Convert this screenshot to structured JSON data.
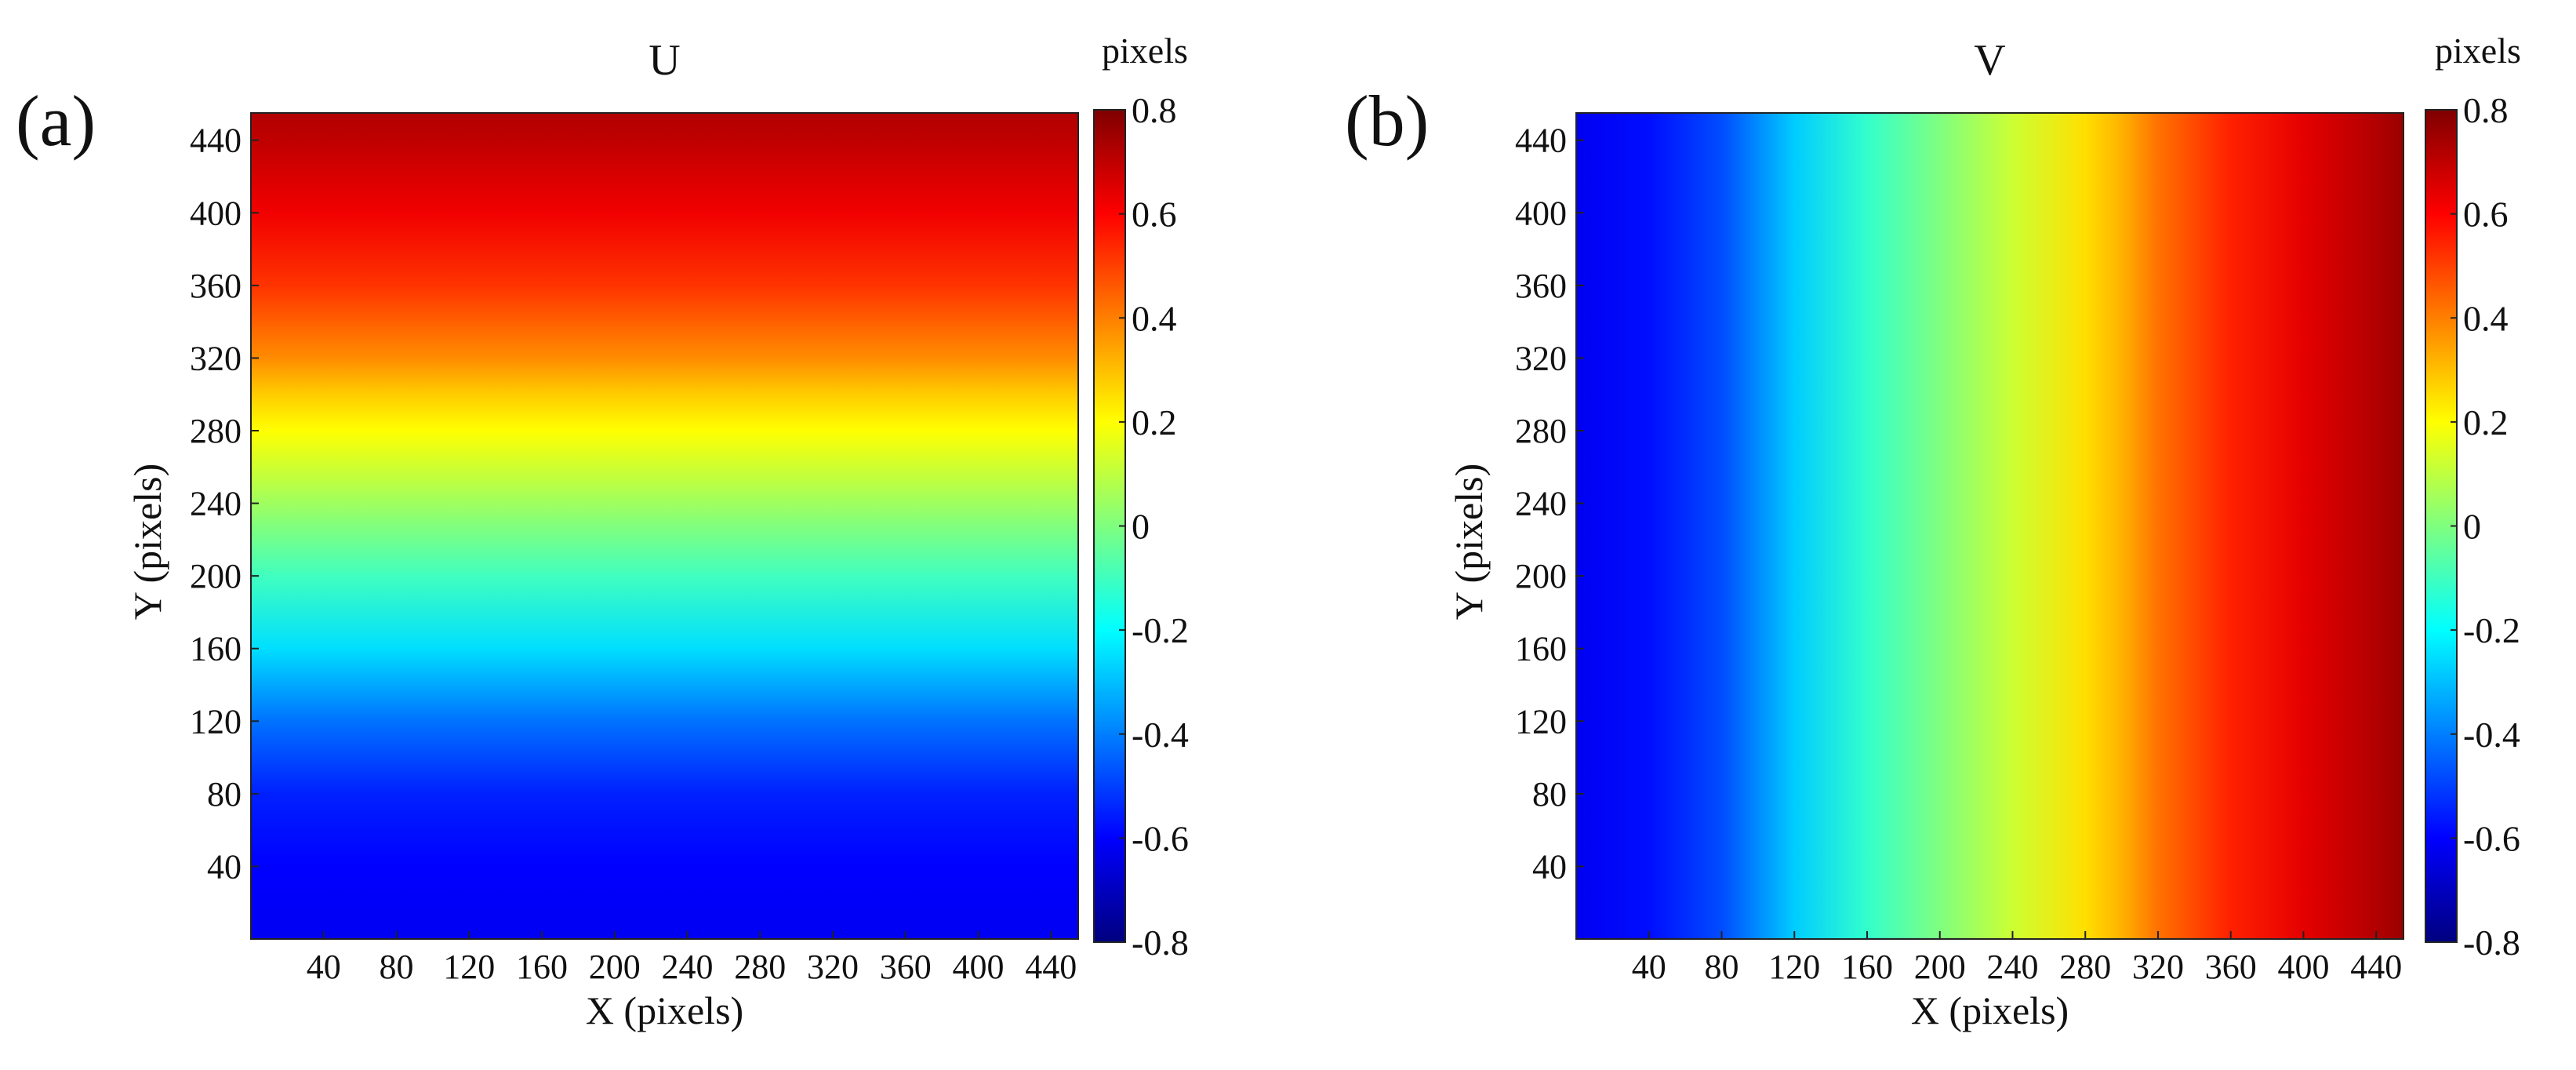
{
  "chart_data": [
    {
      "type": "heatmap",
      "panel_label": "(a)",
      "title": "U",
      "xlabel": "X (pixels)",
      "ylabel": "Y (pixels)",
      "xlim": [
        0,
        455
      ],
      "ylim": [
        0,
        455
      ],
      "xticks": [
        40,
        80,
        120,
        160,
        200,
        240,
        280,
        320,
        360,
        400,
        440
      ],
      "yticks": [
        40,
        80,
        120,
        160,
        200,
        240,
        280,
        320,
        360,
        400,
        440
      ],
      "gradient_axis": "y",
      "profile": [
        {
          "pos": 0,
          "value": -0.62
        },
        {
          "pos": 40,
          "value": -0.6
        },
        {
          "pos": 80,
          "value": -0.55
        },
        {
          "pos": 120,
          "value": -0.42
        },
        {
          "pos": 160,
          "value": -0.25
        },
        {
          "pos": 200,
          "value": -0.1
        },
        {
          "pos": 240,
          "value": 0.05
        },
        {
          "pos": 280,
          "value": 0.2
        },
        {
          "pos": 300,
          "value": 0.28
        },
        {
          "pos": 320,
          "value": 0.38
        },
        {
          "pos": 360,
          "value": 0.52
        },
        {
          "pos": 400,
          "value": 0.62
        },
        {
          "pos": 440,
          "value": 0.7
        },
        {
          "pos": 455,
          "value": 0.72
        }
      ],
      "colorbar": {
        "label": "pixels",
        "range": [
          -0.8,
          0.8
        ],
        "ticks": [
          "0.8",
          "0.6",
          "0.4",
          "0.2",
          "0",
          "-0.2",
          "-0.4",
          "-0.6",
          "-0.8"
        ],
        "tick_values": [
          0.8,
          0.6,
          0.4,
          0.2,
          0,
          -0.2,
          -0.4,
          -0.6,
          -0.8
        ]
      }
    },
    {
      "type": "heatmap",
      "panel_label": "(b)",
      "title": "V",
      "xlabel": "X (pixels)",
      "ylabel": "Y (pixels)",
      "xlim": [
        0,
        455
      ],
      "ylim": [
        0,
        455
      ],
      "xticks": [
        40,
        80,
        120,
        160,
        200,
        240,
        280,
        320,
        360,
        400,
        440
      ],
      "yticks": [
        40,
        80,
        120,
        160,
        200,
        240,
        280,
        320,
        360,
        400,
        440
      ],
      "gradient_axis": "x",
      "profile": [
        {
          "pos": 0,
          "value": -0.62
        },
        {
          "pos": 40,
          "value": -0.58
        },
        {
          "pos": 80,
          "value": -0.48
        },
        {
          "pos": 120,
          "value": -0.28
        },
        {
          "pos": 160,
          "value": -0.12
        },
        {
          "pos": 200,
          "value": 0.0
        },
        {
          "pos": 240,
          "value": 0.12
        },
        {
          "pos": 280,
          "value": 0.25
        },
        {
          "pos": 300,
          "value": 0.32
        },
        {
          "pos": 320,
          "value": 0.42
        },
        {
          "pos": 360,
          "value": 0.55
        },
        {
          "pos": 400,
          "value": 0.64
        },
        {
          "pos": 440,
          "value": 0.72
        },
        {
          "pos": 455,
          "value": 0.76
        }
      ],
      "colorbar": {
        "label": "pixels",
        "range": [
          -0.8,
          0.8
        ],
        "ticks": [
          "0.8",
          "0.6",
          "0.4",
          "0.2",
          "0",
          "-0.2",
          "-0.4",
          "-0.6",
          "-0.8"
        ],
        "tick_values": [
          0.8,
          0.6,
          0.4,
          0.2,
          0,
          -0.2,
          -0.4,
          -0.6,
          -0.8
        ]
      }
    }
  ],
  "colormap": {
    "name": "jet",
    "stops": [
      "#00007f",
      "#0000ff",
      "#007fff",
      "#00ffff",
      "#7fff7f",
      "#ffff00",
      "#ff7f00",
      "#ff0000",
      "#7f0000"
    ]
  }
}
